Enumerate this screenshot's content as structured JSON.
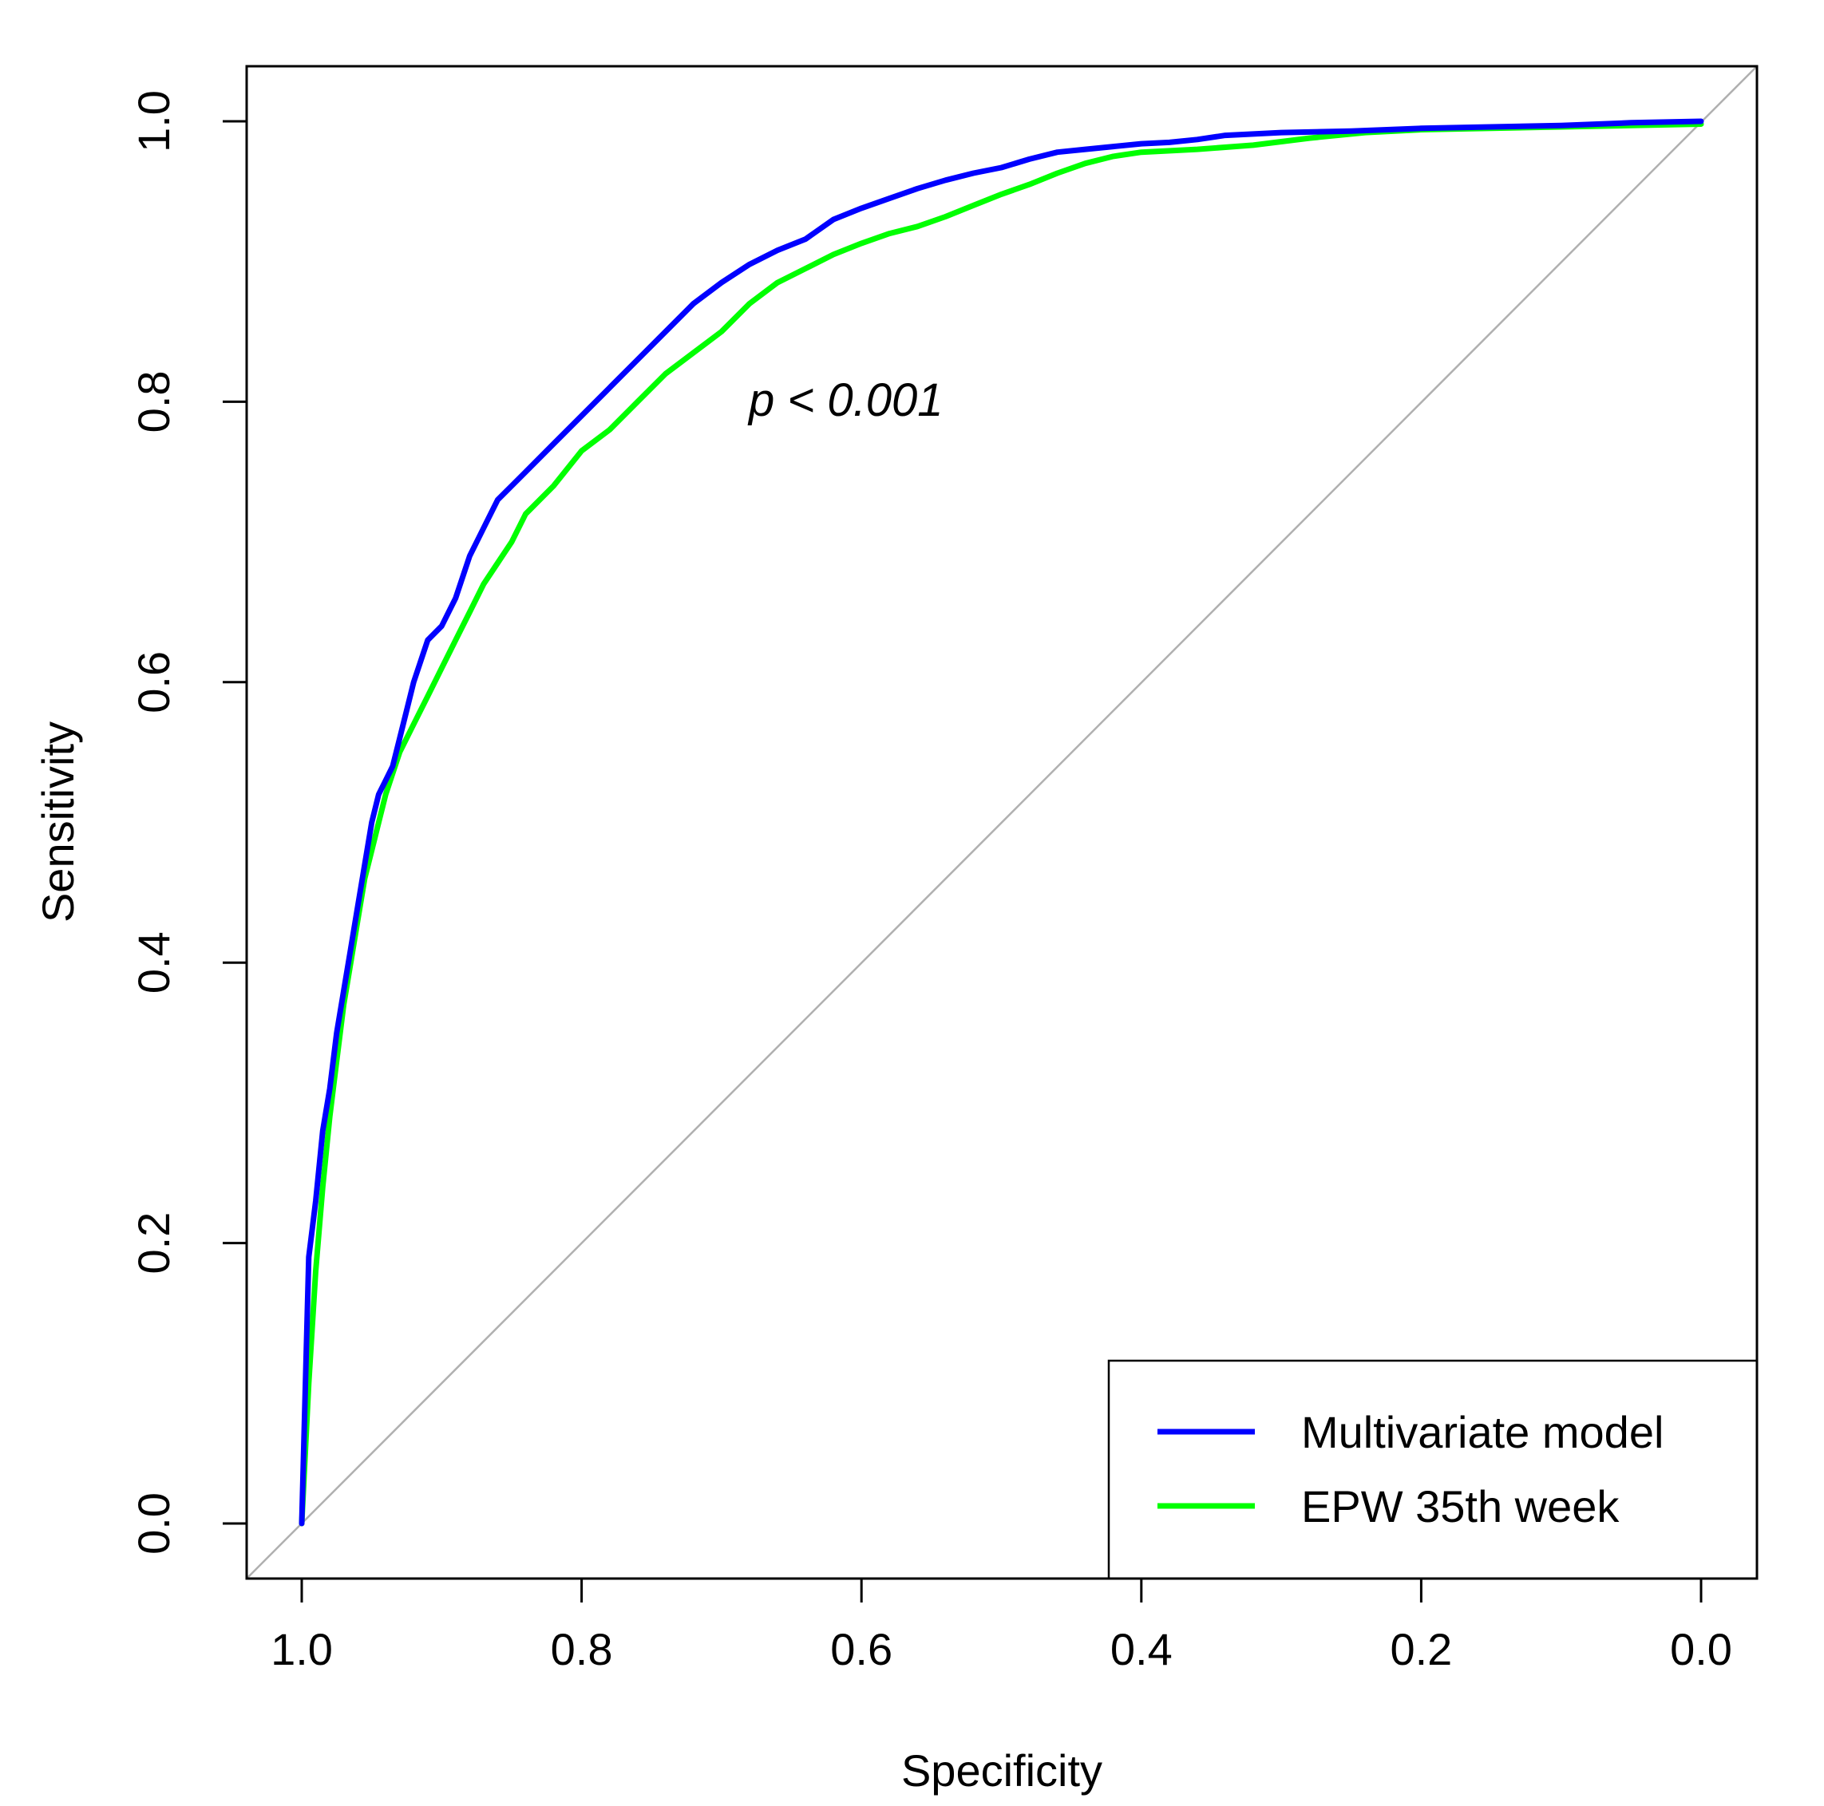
{
  "chart_data": {
    "type": "line",
    "title": "",
    "xlabel": "Specificity",
    "ylabel": "Sensitivity",
    "xlim": [
      1.0,
      0.0
    ],
    "ylim": [
      0.0,
      1.0
    ],
    "x_reversed": true,
    "grid": false,
    "x_ticks": [
      "1.0",
      "0.8",
      "0.6",
      "0.4",
      "0.2",
      "0.0"
    ],
    "y_ticks": [
      "0.0",
      "0.2",
      "0.4",
      "0.6",
      "0.8",
      "1.0"
    ],
    "reference_line": {
      "from": [
        1.0,
        0.0
      ],
      "to": [
        0.0,
        1.0
      ],
      "color": "#b0b0b0"
    },
    "annotation": "p < 0.001",
    "legend_position": "bottom-right",
    "series": [
      {
        "name": "Multivariate model",
        "color": "#0000ff",
        "specificity": [
          1.0,
          0.995,
          0.99,
          0.985,
          0.98,
          0.975,
          0.97,
          0.965,
          0.96,
          0.955,
          0.95,
          0.945,
          0.94,
          0.935,
          0.93,
          0.925,
          0.92,
          0.91,
          0.9,
          0.89,
          0.88,
          0.87,
          0.86,
          0.85,
          0.84,
          0.82,
          0.8,
          0.78,
          0.76,
          0.74,
          0.72,
          0.7,
          0.68,
          0.66,
          0.64,
          0.62,
          0.6,
          0.58,
          0.56,
          0.54,
          0.52,
          0.5,
          0.48,
          0.46,
          0.44,
          0.42,
          0.4,
          0.38,
          0.36,
          0.34,
          0.3,
          0.25,
          0.2,
          0.15,
          0.1,
          0.05,
          0.0
        ],
        "sensitivity": [
          0.0,
          0.19,
          0.23,
          0.28,
          0.31,
          0.35,
          0.38,
          0.41,
          0.44,
          0.47,
          0.5,
          0.52,
          0.53,
          0.54,
          0.56,
          0.58,
          0.6,
          0.63,
          0.64,
          0.66,
          0.69,
          0.71,
          0.73,
          0.74,
          0.75,
          0.77,
          0.79,
          0.81,
          0.83,
          0.85,
          0.87,
          0.885,
          0.898,
          0.908,
          0.916,
          0.93,
          0.938,
          0.945,
          0.952,
          0.958,
          0.963,
          0.967,
          0.973,
          0.978,
          0.98,
          0.982,
          0.984,
          0.985,
          0.987,
          0.99,
          0.992,
          0.993,
          0.995,
          0.996,
          0.997,
          0.999,
          1.0
        ]
      },
      {
        "name": "EPW 35th week",
        "color": "#00ff00",
        "specificity": [
          1.0,
          0.995,
          0.99,
          0.985,
          0.98,
          0.975,
          0.97,
          0.965,
          0.96,
          0.955,
          0.95,
          0.945,
          0.94,
          0.93,
          0.92,
          0.91,
          0.9,
          0.89,
          0.88,
          0.87,
          0.86,
          0.85,
          0.84,
          0.82,
          0.8,
          0.78,
          0.76,
          0.74,
          0.72,
          0.7,
          0.68,
          0.66,
          0.64,
          0.62,
          0.6,
          0.58,
          0.56,
          0.54,
          0.52,
          0.5,
          0.48,
          0.46,
          0.44,
          0.42,
          0.4,
          0.36,
          0.32,
          0.28,
          0.24,
          0.2,
          0.15,
          0.1,
          0.05,
          0.0
        ],
        "sensitivity": [
          0.0,
          0.1,
          0.18,
          0.24,
          0.29,
          0.33,
          0.37,
          0.4,
          0.43,
          0.46,
          0.48,
          0.5,
          0.52,
          0.55,
          0.57,
          0.59,
          0.61,
          0.63,
          0.65,
          0.67,
          0.685,
          0.7,
          0.72,
          0.74,
          0.765,
          0.78,
          0.8,
          0.82,
          0.835,
          0.85,
          0.87,
          0.885,
          0.895,
          0.905,
          0.913,
          0.92,
          0.925,
          0.932,
          0.94,
          0.948,
          0.955,
          0.963,
          0.97,
          0.975,
          0.978,
          0.98,
          0.983,
          0.988,
          0.992,
          0.994,
          0.995,
          0.996,
          0.997,
          0.998
        ]
      }
    ]
  }
}
